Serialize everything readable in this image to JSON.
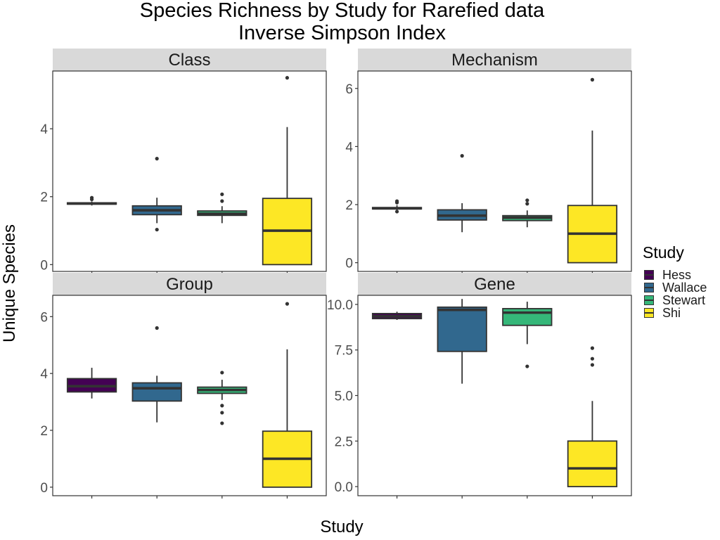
{
  "title": {
    "line1": "Species Richness by Study for Rarefied data",
    "line2": "Inverse Simpson Index"
  },
  "xlabel": "Study",
  "ylabel": "Unique Species",
  "legend": {
    "title": "Study",
    "items": [
      {
        "label": "Hess",
        "color": "#440154"
      },
      {
        "label": "Wallace",
        "color": "#31688E"
      },
      {
        "label": "Stewart",
        "color": "#35B779"
      },
      {
        "label": "Shi",
        "color": "#FDE725"
      }
    ]
  },
  "chart_data": {
    "type": "boxplot",
    "categories": [
      "Hess",
      "Wallace",
      "Stewart",
      "Shi"
    ],
    "x_tick_labels_shown": false,
    "grid": false,
    "legend_position": "right",
    "panels": [
      {
        "title": "Class",
        "ylim": [
          -0.2,
          5.7
        ],
        "yticks": [
          0,
          2,
          4
        ],
        "ytick_labels": [
          "0",
          "2",
          "4"
        ],
        "boxes": [
          {
            "category": "Hess",
            "q1": 1.78,
            "median": 1.8,
            "q3": 1.82,
            "whisker_low": 1.74,
            "whisker_high": 1.86,
            "outliers": [
              1.92,
              1.97
            ]
          },
          {
            "category": "Wallace",
            "q1": 1.47,
            "median": 1.6,
            "q3": 1.73,
            "whisker_low": 1.22,
            "whisker_high": 1.97,
            "outliers": [
              1.03,
              3.12
            ]
          },
          {
            "category": "Stewart",
            "q1": 1.45,
            "median": 1.5,
            "q3": 1.58,
            "whisker_low": 1.22,
            "whisker_high": 1.72,
            "outliers": [
              1.87,
              2.07
            ]
          },
          {
            "category": "Shi",
            "q1": 0.0,
            "median": 1.0,
            "q3": 1.95,
            "whisker_low": 0.0,
            "whisker_high": 4.05,
            "outliers": [
              5.5
            ]
          }
        ]
      },
      {
        "title": "Mechanism",
        "ylim": [
          -0.3,
          6.6
        ],
        "yticks": [
          0,
          2,
          4,
          6
        ],
        "ytick_labels": [
          "0",
          "2",
          "4",
          "6"
        ],
        "boxes": [
          {
            "category": "Hess",
            "q1": 1.85,
            "median": 1.87,
            "q3": 1.9,
            "whisker_low": 1.8,
            "whisker_high": 1.98,
            "outliers": [
              1.76,
              2.07,
              2.12
            ]
          },
          {
            "category": "Wallace",
            "q1": 1.47,
            "median": 1.62,
            "q3": 1.82,
            "whisker_low": 1.05,
            "whisker_high": 2.05,
            "outliers": [
              3.68
            ]
          },
          {
            "category": "Stewart",
            "q1": 1.45,
            "median": 1.55,
            "q3": 1.62,
            "whisker_low": 1.22,
            "whisker_high": 1.8,
            "outliers": [
              2.03,
              2.15
            ]
          },
          {
            "category": "Shi",
            "q1": 0.0,
            "median": 1.0,
            "q3": 1.97,
            "whisker_low": 0.0,
            "whisker_high": 4.55,
            "outliers": [
              6.3
            ]
          }
        ]
      },
      {
        "title": "Group",
        "ylim": [
          -0.3,
          6.75
        ],
        "yticks": [
          0,
          2,
          4,
          6
        ],
        "ytick_labels": [
          "0",
          "2",
          "4",
          "6"
        ],
        "boxes": [
          {
            "category": "Hess",
            "q1": 3.35,
            "median": 3.55,
            "q3": 3.82,
            "whisker_low": 3.12,
            "whisker_high": 4.2,
            "outliers": []
          },
          {
            "category": "Wallace",
            "q1": 3.03,
            "median": 3.48,
            "q3": 3.67,
            "whisker_low": 2.28,
            "whisker_high": 3.92,
            "outliers": [
              5.6
            ]
          },
          {
            "category": "Stewart",
            "q1": 3.3,
            "median": 3.42,
            "q3": 3.52,
            "whisker_low": 3.07,
            "whisker_high": 3.78,
            "outliers": [
              4.03,
              2.87,
              2.62,
              2.25
            ]
          },
          {
            "category": "Shi",
            "q1": 0.0,
            "median": 1.0,
            "q3": 1.97,
            "whisker_low": 0.0,
            "whisker_high": 4.85,
            "outliers": [
              6.45
            ]
          }
        ]
      },
      {
        "title": "Gene",
        "ylim": [
          -0.5,
          10.5
        ],
        "yticks": [
          0,
          2.5,
          5,
          7.5,
          10
        ],
        "ytick_labels": [
          "0.0",
          "2.5",
          "5.0",
          "7.5",
          "10.0"
        ],
        "boxes": [
          {
            "category": "Hess",
            "q1": 9.22,
            "median": 9.35,
            "q3": 9.5,
            "whisker_low": 9.15,
            "whisker_high": 9.6,
            "outliers": []
          },
          {
            "category": "Wallace",
            "q1": 7.42,
            "median": 9.7,
            "q3": 9.85,
            "whisker_low": 5.65,
            "whisker_high": 10.3,
            "outliers": []
          },
          {
            "category": "Stewart",
            "q1": 8.85,
            "median": 9.55,
            "q3": 9.77,
            "whisker_low": 7.82,
            "whisker_high": 10.15,
            "outliers": [
              6.6
            ]
          },
          {
            "category": "Shi",
            "q1": 0.0,
            "median": 1.0,
            "q3": 2.5,
            "whisker_low": 0.0,
            "whisker_high": 4.7,
            "outliers": [
              6.68,
              7.02,
              7.6
            ]
          }
        ]
      }
    ]
  }
}
